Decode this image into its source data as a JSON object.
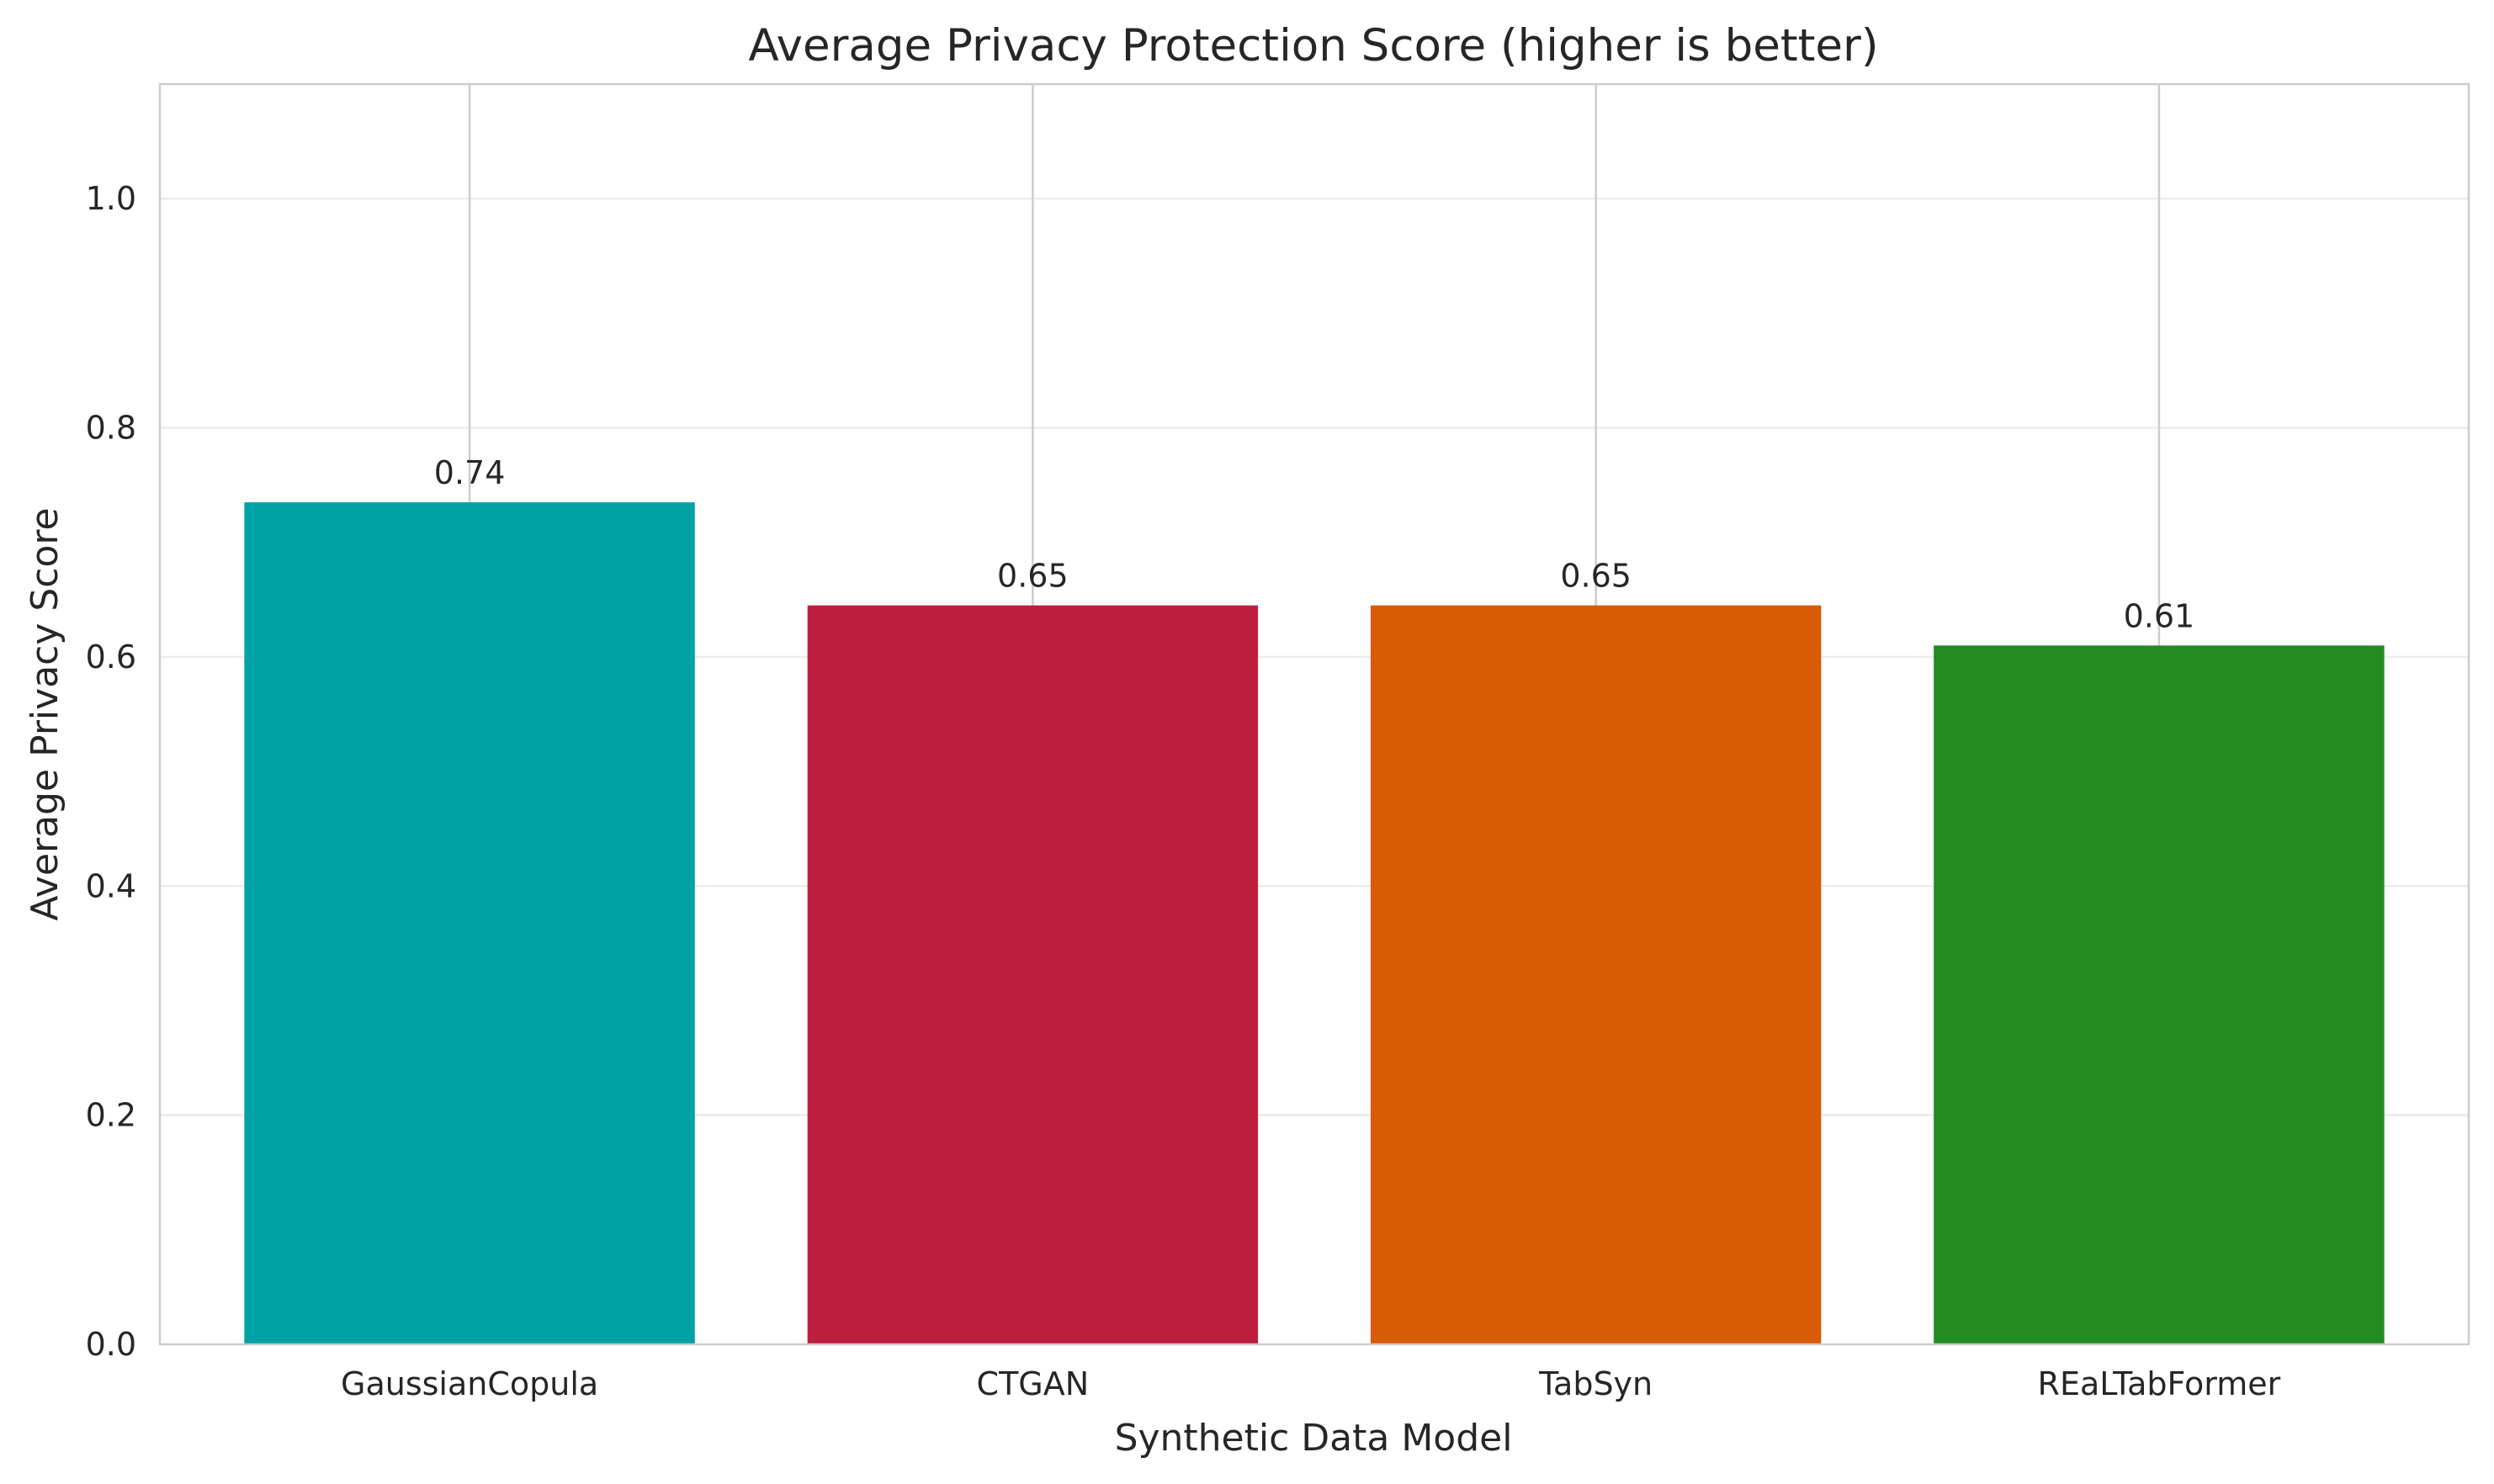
{
  "chart_data": {
    "type": "bar",
    "title": "Average Privacy Protection Score (higher is better)",
    "xlabel": "Synthetic Data Model",
    "ylabel": "Average Privacy Score",
    "categories": [
      "GaussianCopula",
      "CTGAN",
      "TabSyn",
      "REaLTabFormer"
    ],
    "values": [
      0.735,
      0.645,
      0.645,
      0.61
    ],
    "value_labels": [
      "0.74",
      "0.65",
      "0.65",
      "0.61"
    ],
    "colors": [
      "#00a2a5",
      "#be1e3e",
      "#d95b05",
      "#228b22"
    ],
    "ylim": [
      0,
      1.1
    ],
    "yticks": [
      0.0,
      0.2,
      0.4,
      0.6,
      0.8,
      1.0
    ],
    "ytick_labels": [
      "0.0",
      "0.2",
      "0.4",
      "0.6",
      "0.8",
      "1.0"
    ],
    "grid": true,
    "legend": "none"
  }
}
